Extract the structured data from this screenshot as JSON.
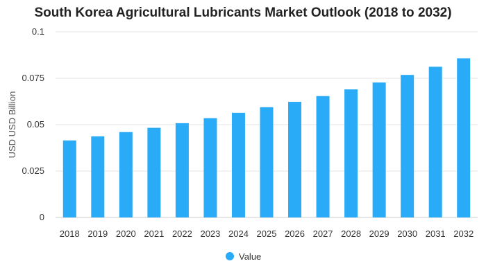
{
  "chart_data": {
    "type": "bar",
    "title": "South Korea Agricultural Lubricants Market Outlook (2018 to 2032)",
    "xlabel": "",
    "ylabel": "USD USD Billion",
    "categories": [
      "2018",
      "2019",
      "2020",
      "2021",
      "2022",
      "2023",
      "2024",
      "2025",
      "2026",
      "2027",
      "2028",
      "2029",
      "2030",
      "2031",
      "2032"
    ],
    "series": [
      {
        "name": "Value",
        "color": "#29abf7",
        "values": [
          0.0415,
          0.0437,
          0.046,
          0.0483,
          0.0508,
          0.0535,
          0.0564,
          0.0594,
          0.0623,
          0.0654,
          0.069,
          0.0727,
          0.0768,
          0.0812,
          0.0857
        ]
      }
    ],
    "ylim": [
      0,
      0.1
    ],
    "yticks": [
      0,
      0.025,
      0.05,
      0.075,
      0.1
    ],
    "ytick_labels": [
      "0",
      "0.025",
      "0.05",
      "0.075",
      "0.1"
    ],
    "grid": true,
    "legend_position": "bottom-center"
  }
}
